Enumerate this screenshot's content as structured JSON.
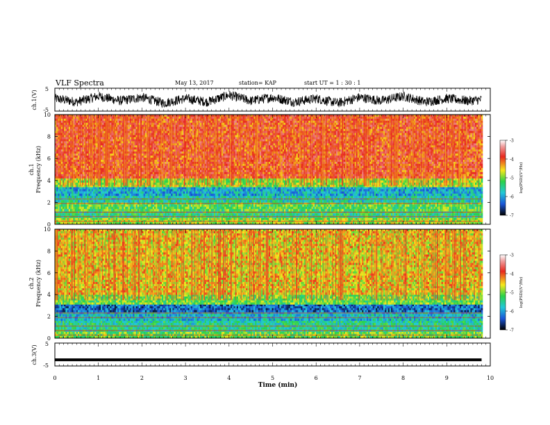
{
  "header": {
    "title": "VLF Spectra",
    "date": "May 13, 2017",
    "station": "station= KAP",
    "start": "start  UT =  1 : 30 : 1"
  },
  "colors": {
    "spectrum_high": "#e8281e",
    "spectrum_mid": "#f7e81c",
    "spectrum_low": "#2ad24a",
    "spectrum_floor": "#1a56d8",
    "waveform": "#000000"
  },
  "chart_data": [
    {
      "type": "line",
      "panel": "ch1-waveform",
      "ylabel": "ch.1(V)",
      "ylim": [
        -5,
        5
      ],
      "yticks": [
        "5",
        "-5"
      ],
      "x": [
        0,
        0.5,
        1,
        1.5,
        2,
        2.5,
        3,
        3.5,
        4,
        4.5,
        5,
        5.5,
        6,
        6.5,
        7,
        7.5,
        8,
        8.5,
        9,
        9.5,
        9.8
      ],
      "series": [
        {
          "values": [
            0.5,
            -1,
            1.5,
            -0.5,
            1,
            -1.5,
            0.5,
            -1,
            2,
            -0.5,
            1,
            -1,
            0.5,
            -1.5,
            1,
            -0.5,
            1.5,
            -1,
            0.5,
            -0.5,
            0
          ]
        }
      ]
    },
    {
      "type": "heatmap",
      "panel": "ch1-spectrogram",
      "ylabel": "ch.1\nFrequency  (kHz)",
      "ylim": [
        0,
        10
      ],
      "yticks": [
        "0",
        "2",
        "4",
        "6",
        "8",
        "10"
      ],
      "colorbar": {
        "label": "log(PSD)(V²/Hz)",
        "ticks": [
          "-3",
          "-4",
          "-5",
          "-6",
          "-7"
        ],
        "range": [
          -7,
          -3
        ]
      },
      "bands": [
        {
          "from": 0,
          "to": 0.6,
          "level": -4.8
        },
        {
          "from": 0.6,
          "to": 1.2,
          "level": -5.4
        },
        {
          "from": 1.2,
          "to": 2.0,
          "level": -5.1
        },
        {
          "from": 2.0,
          "to": 2.6,
          "level": -5.6
        },
        {
          "from": 2.6,
          "to": 3.4,
          "level": -5.9
        },
        {
          "from": 3.4,
          "to": 4.2,
          "level": -4.8
        },
        {
          "from": 4.2,
          "to": 10,
          "level": -3.9
        }
      ]
    },
    {
      "type": "heatmap",
      "panel": "ch2-spectrogram",
      "ylabel": "ch.2\nFrequency  (kHz)",
      "ylim": [
        0,
        10
      ],
      "yticks": [
        "0",
        "2",
        "4",
        "6",
        "8",
        "10"
      ],
      "colorbar": {
        "label": "log(PSD)(V²/Hz)",
        "ticks": [
          "-3",
          "-4",
          "-5",
          "-6",
          "-7"
        ],
        "range": [
          -7,
          -3
        ]
      },
      "bands": [
        {
          "from": 0,
          "to": 0.6,
          "level": -5.0
        },
        {
          "from": 0.6,
          "to": 1.6,
          "level": -5.5
        },
        {
          "from": 1.6,
          "to": 2.4,
          "level": -5.8
        },
        {
          "from": 2.4,
          "to": 3.1,
          "level": -6.3
        },
        {
          "from": 3.1,
          "to": 4.0,
          "level": -5.0
        },
        {
          "from": 4.0,
          "to": 10,
          "level": -4.5
        }
      ]
    },
    {
      "type": "line",
      "panel": "ch3-waveform",
      "ylabel": "ch.3(V)",
      "ylim": [
        -5,
        5
      ],
      "yticks": [
        "5",
        "-5"
      ],
      "x": [
        0,
        9.8
      ],
      "series": [
        {
          "values": [
            -2.3,
            -2.3
          ]
        }
      ]
    }
  ],
  "time_axis": {
    "xlabel": "Time  (min)",
    "xlim": [
      0,
      10
    ],
    "ticks": [
      "0",
      "1",
      "2",
      "3",
      "4",
      "5",
      "6",
      "7",
      "8",
      "9",
      "10"
    ]
  }
}
